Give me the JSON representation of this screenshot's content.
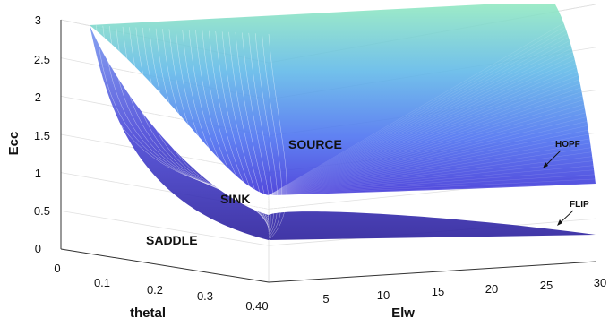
{
  "chart_data": {
    "type": "surface3d",
    "axes": {
      "z": {
        "label": "Ecc",
        "ticks": [
          "0",
          "0.5",
          "1",
          "1.5",
          "2",
          "2.5",
          "3"
        ],
        "range": [
          0,
          3
        ]
      },
      "y": {
        "label": "thetal",
        "ticks": [
          "0",
          "0.1",
          "0.2",
          "0.3",
          "0.40"
        ],
        "range": [
          0,
          0.4
        ]
      },
      "x": {
        "label": "Elw",
        "ticks": [
          "5",
          "10",
          "15",
          "20",
          "25",
          "30"
        ],
        "range": [
          0,
          30
        ]
      }
    },
    "grid": true,
    "series": [
      {
        "name": "HOPF",
        "description_values": {
          "Ecc_far": 0.8,
          "Ecc_peak": 3.0
        }
      },
      {
        "name": "FLIP",
        "description_values": {
          "Ecc_far": 0.2,
          "Ecc_peak": 3.0
        }
      }
    ],
    "annotations": [
      "SOURCE",
      "SINK",
      "SADDLE",
      "HOPF",
      "FLIP"
    ],
    "colors": {
      "low": "#3a2fd0",
      "mid": "#4b8cf0",
      "high": "#7fe0c8"
    }
  }
}
